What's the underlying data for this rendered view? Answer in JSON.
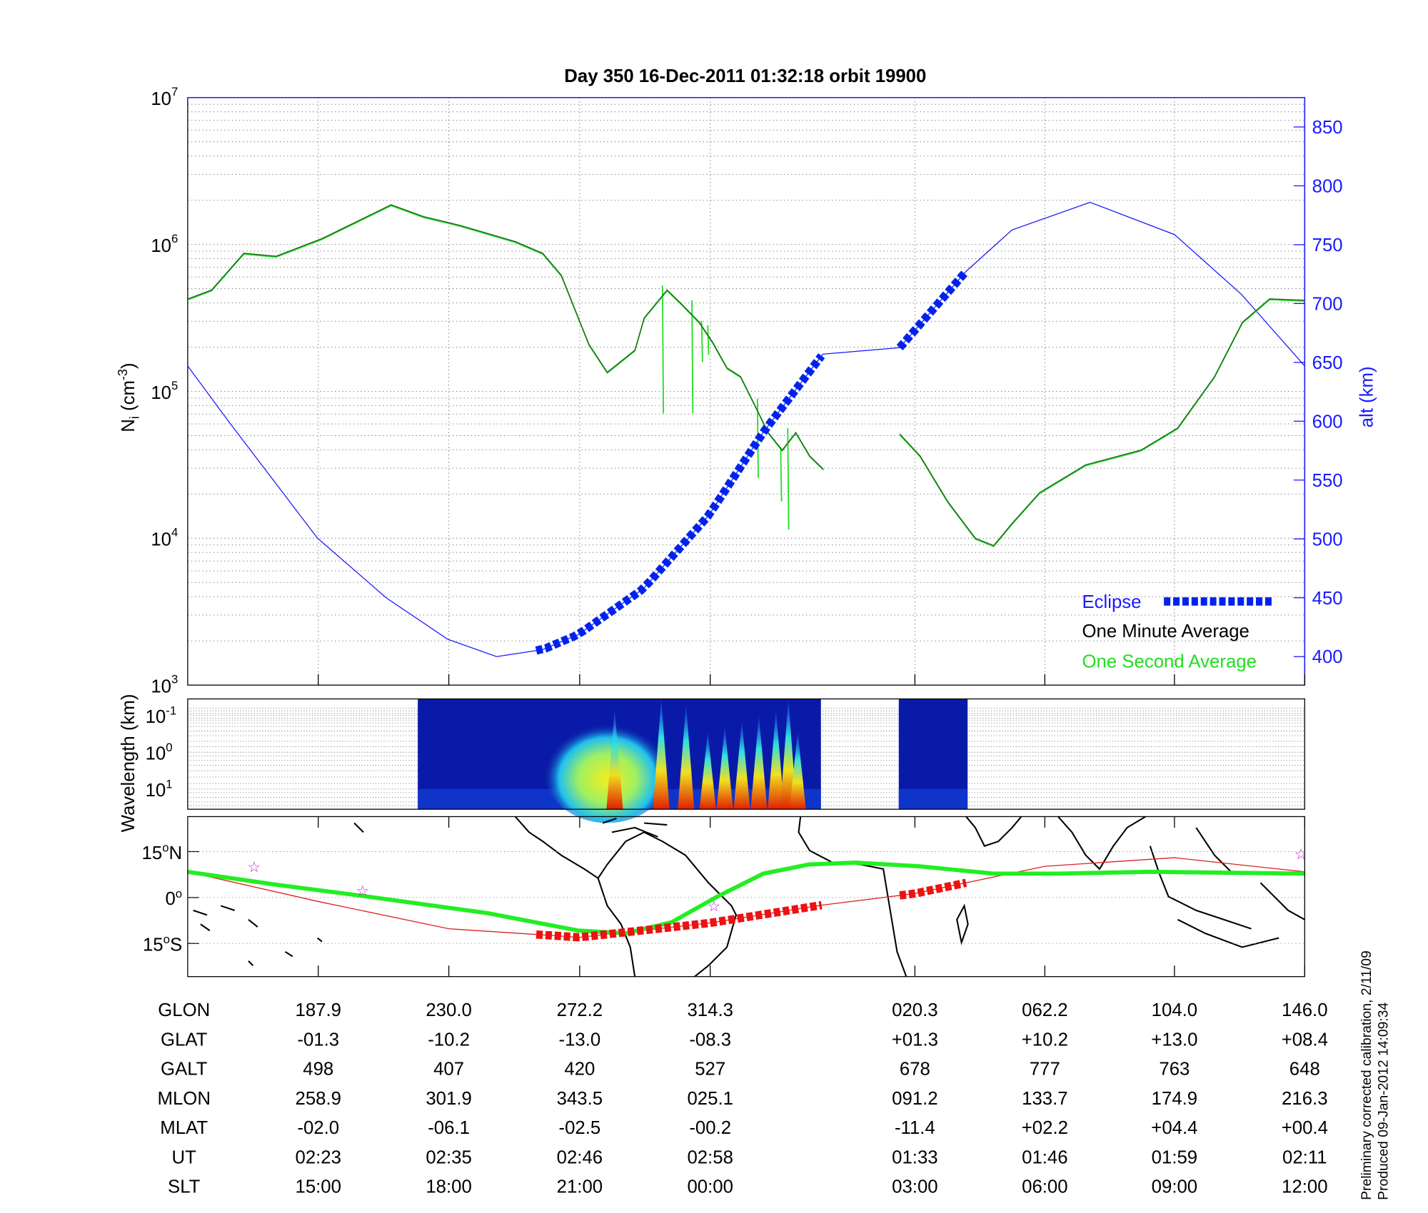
{
  "chart_data": {
    "type": "line",
    "title": "Day 350  16-Dec-2011 01:32:18   orbit 19900",
    "x_axis": {
      "quantity": "GLON (unwrapped, deg)",
      "range": [
        145.8,
        506.0
      ],
      "tick_values": [
        187.9,
        230.0,
        272.2,
        314.3,
        380.3,
        422.2,
        464.0,
        506.0
      ]
    },
    "left_axis": {
      "label": "N",
      "label_sub": "i",
      "label_unit": " (cm",
      "label_exp": "-3",
      "label_close": ")",
      "scale": "log",
      "range_log10": [
        3,
        7
      ],
      "tick_labels": [
        {
          "base": "10",
          "exp": "3",
          "log": 3
        },
        {
          "base": "10",
          "exp": "4",
          "log": 4
        },
        {
          "base": "10",
          "exp": "5",
          "log": 5
        },
        {
          "base": "10",
          "exp": "6",
          "log": 6
        },
        {
          "base": "10",
          "exp": "7",
          "log": 7
        }
      ]
    },
    "right_axis": {
      "label": "alt (km)",
      "range": [
        375,
        875
      ],
      "tick_labels": [
        "400",
        "450",
        "500",
        "550",
        "600",
        "650",
        "700",
        "750",
        "800",
        "850"
      ]
    },
    "legend": {
      "placement": "bottom-right",
      "entries": [
        {
          "label": "Eclipse",
          "color": "#0022ee"
        },
        {
          "label": "One Minute Average",
          "color": "#000000"
        },
        {
          "label": "One Second Average",
          "color": "#22dd22"
        }
      ]
    },
    "series": [
      {
        "name": "One Minute Average",
        "color": "#1a5c1a",
        "y_kind": "log10_Ni",
        "segments": [
          [
            [
              146,
              5.63
            ],
            [
              153.5,
              5.69
            ],
            [
              163.9,
              5.94
            ],
            [
              174.3,
              5.92
            ],
            [
              189.1,
              6.04
            ],
            [
              211.4,
              6.27
            ],
            [
              221.8,
              6.19
            ],
            [
              233.6,
              6.13
            ],
            [
              251.4,
              6.02
            ],
            [
              260.3,
              5.94
            ],
            [
              266.3,
              5.79
            ],
            [
              275.2,
              5.32
            ],
            [
              281.1,
              5.13
            ],
            [
              290.0,
              5.28
            ],
            [
              293.0,
              5.5
            ],
            [
              300.4,
              5.69
            ],
            [
              304.8,
              5.6
            ],
            [
              310.8,
              5.47
            ],
            [
              315.2,
              5.33
            ],
            [
              319.7,
              5.16
            ],
            [
              324.1,
              5.1
            ],
            [
              328.6,
              4.91
            ],
            [
              333.0,
              4.72
            ],
            [
              337.5,
              4.6
            ],
            [
              341.9,
              4.72
            ],
            [
              346.4,
              4.56
            ],
            [
              350.8,
              4.47
            ]
          ],
          [
            [
              375.4,
              4.71
            ],
            [
              382.0,
              4.56
            ],
            [
              390.9,
              4.25
            ],
            [
              399.8,
              4.0
            ],
            [
              405.7,
              3.95
            ],
            [
              411.6,
              4.1
            ],
            [
              420.5,
              4.31
            ],
            [
              435.4,
              4.5
            ],
            [
              453.2,
              4.6
            ],
            [
              465.0,
              4.75
            ],
            [
              476.9,
              5.1
            ],
            [
              485.9,
              5.47
            ],
            [
              494.7,
              5.63
            ],
            [
              506.0,
              5.62
            ]
          ]
        ]
      },
      {
        "name": "One Second Average",
        "color": "#22dd22",
        "y_kind": "log10_Ni",
        "spikes": [
          [
            298.9,
            5.72,
            4.85
          ],
          [
            308.4,
            5.62,
            4.85
          ],
          [
            311.5,
            5.48,
            5.2
          ],
          [
            313.5,
            5.45,
            5.25
          ],
          [
            329.5,
            4.95,
            4.41
          ],
          [
            339.3,
            4.75,
            4.06
          ],
          [
            337.0,
            4.62,
            4.25
          ]
        ]
      },
      {
        "name": "Altitude",
        "color": "#1a1aff",
        "y_kind": "alt_km",
        "points": [
          [
            145.8,
            646.9
          ],
          [
            159.4,
            598.4
          ],
          [
            187.6,
            500.8
          ],
          [
            209.8,
            450
          ],
          [
            229.6,
            414.8
          ],
          [
            245.4,
            400
          ],
          [
            260.3,
            406
          ],
          [
            271.8,
            418.8
          ],
          [
            292.8,
            457.8
          ],
          [
            313.9,
            520.3
          ],
          [
            331.4,
            590.6
          ],
          [
            350.6,
            657
          ],
          [
            375.4,
            662.5
          ],
          [
            396.8,
            727.3
          ],
          [
            411.6,
            762.5
          ],
          [
            436.8,
            786
          ],
          [
            464.0,
            758.6
          ],
          [
            485.6,
            707.8
          ],
          [
            506.0,
            646.9
          ]
        ]
      },
      {
        "name": "Eclipse",
        "color": "#0022ee",
        "ranges": [
          [
            258.2,
            350.2
          ],
          [
            375.4,
            396.8
          ]
        ]
      }
    ],
    "spectrogram": {
      "ylabel": "Wavelength (km)",
      "tick_labels": [
        {
          "base": "10",
          "exp": "-1"
        },
        {
          "base": "10",
          "exp": "0"
        },
        {
          "base": "10",
          "exp": "1"
        }
      ],
      "data_ranges": [
        [
          220.0,
          350.0
        ],
        [
          375.1,
          397.3
        ]
      ],
      "bursts": [
        [
          283.5,
          0.9
        ],
        [
          298.5,
          1.0
        ],
        [
          306.5,
          0.95
        ],
        [
          313.5,
          0.7
        ],
        [
          319.0,
          0.75
        ],
        [
          324.5,
          0.8
        ],
        [
          330.0,
          0.85
        ],
        [
          335.5,
          0.9
        ],
        [
          339.5,
          1.0
        ],
        [
          342.5,
          0.7
        ]
      ]
    },
    "map": {
      "lat_labels": [
        {
          "deg": "15",
          "sym": "o",
          "hemi": "N",
          "lat": 15
        },
        {
          "deg": "0",
          "sym": "o",
          "hemi": "",
          "lat": 0
        },
        {
          "deg": "15",
          "sym": "o",
          "hemi": "S",
          "lat": -15
        }
      ],
      "satellite_track": {
        "color": "#dd2222",
        "points": [
          [
            145.8,
            8.4
          ],
          [
            187.9,
            -1.3
          ],
          [
            230.0,
            -10.2
          ],
          [
            272.2,
            -13.0
          ],
          [
            314.3,
            -8.3
          ],
          [
            350.2,
            -2.5
          ],
          [
            380.3,
            1.3
          ],
          [
            422.2,
            10.2
          ],
          [
            464.0,
            13.0
          ],
          [
            506.0,
            8.4
          ]
        ]
      },
      "magnetic_equator": {
        "color": "#22ee22",
        "points": [
          [
            145.8,
            8.4
          ],
          [
            174.3,
            4.2
          ],
          [
            203.9,
            0.3
          ],
          [
            242.5,
            -5.1
          ],
          [
            271.8,
            -10.8
          ],
          [
            287.0,
            -11.7
          ],
          [
            301.8,
            -8.1
          ],
          [
            316.6,
            0.3
          ],
          [
            331.4,
            7.8
          ],
          [
            346.2,
            10.8
          ],
          [
            361.1,
            11.4
          ],
          [
            381.8,
            10.2
          ],
          [
            405.7,
            7.8
          ],
          [
            426.4,
            7.8
          ],
          [
            456.1,
            8.4
          ],
          [
            506.0,
            7.8
          ]
        ]
      },
      "stars": [
        [
          167.2,
          10.2
        ],
        [
          202.2,
          2.4
        ],
        [
          315.5,
          -2.7
        ],
        [
          504.8,
          14.4
        ]
      ]
    }
  },
  "table": {
    "rows": [
      {
        "label": "GLON",
        "values": [
          "187.9",
          "230.0",
          "272.2",
          "314.3",
          "020.3",
          "062.2",
          "104.0",
          "146.0"
        ]
      },
      {
        "label": "GLAT",
        "values": [
          "-01.3",
          "-10.2",
          "-13.0",
          "-08.3",
          "+01.3",
          "+10.2",
          "+13.0",
          "+08.4"
        ]
      },
      {
        "label": "GALT",
        "values": [
          "498",
          "407",
          "420",
          "527",
          "678",
          "777",
          "763",
          "648"
        ]
      },
      {
        "label": "MLON",
        "values": [
          "258.9",
          "301.9",
          "343.5",
          "025.1",
          "091.2",
          "133.7",
          "174.9",
          "216.3"
        ]
      },
      {
        "label": "MLAT",
        "values": [
          "-02.0",
          "-06.1",
          "-02.5",
          "-00.2",
          "-11.4",
          "+02.2",
          "+04.4",
          "+00.4"
        ]
      },
      {
        "label": "UT",
        "values": [
          "02:23",
          "02:35",
          "02:46",
          "02:58",
          "01:33",
          "01:46",
          "01:59",
          "02:11"
        ]
      },
      {
        "label": "SLT",
        "values": [
          "15:00",
          "18:00",
          "21:00",
          "00:00",
          "03:00",
          "06:00",
          "09:00",
          "12:00"
        ]
      }
    ]
  },
  "footer": {
    "line1": "Preliminary corrected calibration, 2/11/09",
    "line2": "Produced 09-Jan-2012 14:09:34"
  }
}
